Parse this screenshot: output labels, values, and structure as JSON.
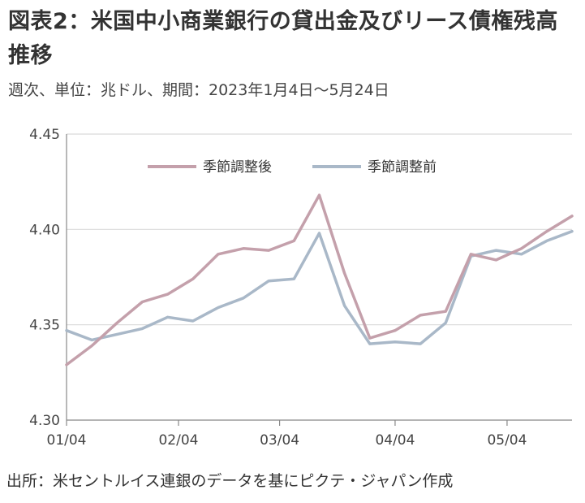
{
  "header": {
    "title": "図表2：米国中小商業銀行の貸出金及びリース債権残高推移",
    "subtitle": "週次、単位：兆ドル、期間：2023年1月4日～5月24日"
  },
  "footer": {
    "source": "出所：米セントルイス連銀のデータを基にピクテ・ジャパン作成"
  },
  "colors": {
    "seasonally_adjusted": "#c4a0ab",
    "not_seasonally_adjusted": "#a9b8c8",
    "axis": "#888888",
    "grid": "#d9d9d9",
    "text": "#444444"
  },
  "chart_data": {
    "type": "line",
    "title": "",
    "xlabel": "",
    "ylabel": "",
    "x": [
      "01/04",
      "01/11",
      "01/18",
      "01/25",
      "02/01",
      "02/08",
      "02/15",
      "02/22",
      "03/01",
      "03/08",
      "03/15",
      "03/22",
      "03/29",
      "04/05",
      "04/12",
      "04/19",
      "04/26",
      "05/03",
      "05/10",
      "05/17",
      "05/24"
    ],
    "x_ticks": [
      "01/04",
      "02/04",
      "03/04",
      "04/04",
      "05/04"
    ],
    "x_tick_positions": [
      0,
      4.43,
      8.43,
      13.0,
      17.43
    ],
    "ylim": [
      4.3,
      4.45
    ],
    "y_ticks": [
      "4.30",
      "4.35",
      "4.40",
      "4.45"
    ],
    "y_tick_values": [
      4.3,
      4.35,
      4.4,
      4.45
    ],
    "grid": "horizontal",
    "legend_position": "top-center",
    "series": [
      {
        "name": "季節調整後",
        "color": "#c4a0ab",
        "values": [
          4.329,
          4.339,
          4.351,
          4.362,
          4.366,
          4.374,
          4.387,
          4.39,
          4.389,
          4.394,
          4.418,
          4.377,
          4.343,
          4.347,
          4.355,
          4.357,
          4.387,
          4.384,
          4.39,
          4.399,
          4.407
        ]
      },
      {
        "name": "季節調整前",
        "color": "#a9b8c8",
        "values": [
          4.347,
          4.342,
          4.345,
          4.348,
          4.354,
          4.352,
          4.359,
          4.364,
          4.373,
          4.374,
          4.398,
          4.36,
          4.34,
          4.341,
          4.34,
          4.351,
          4.386,
          4.389,
          4.387,
          4.394,
          4.399
        ]
      }
    ]
  }
}
